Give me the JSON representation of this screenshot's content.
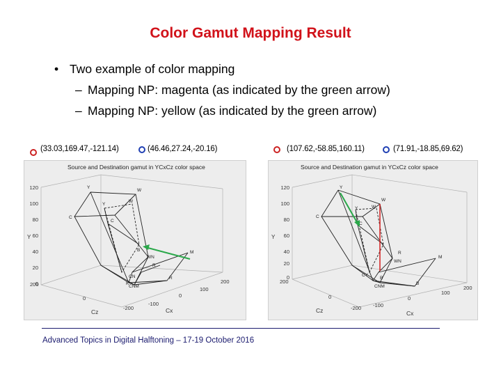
{
  "slide": {
    "title": "Color Gamut Mapping Result",
    "bullet": "Two example of color mapping",
    "sub1": "Mapping NP: magenta (as indicated by the green arrow)",
    "sub2": "Mapping NP: yellow (as indicated by the green arrow)",
    "footer": "Advanced Topics in Digital Halftoning – 17-19 October 2016"
  },
  "colors": {
    "title": "#d1121a",
    "source_marker": "#cc2222",
    "dest_marker": "#1f3fb3",
    "arrow": "#2aa84a",
    "mapping_line": "#d41d1d"
  },
  "plots": [
    {
      "source_coord": "(33.03,169.47,-121.14)",
      "dest_coord": "(46.46,27.24,-20.16)",
      "title": "Source and Destination gamut in YCxCz color space",
      "y_ticks": [
        "120",
        "100",
        "80",
        "60",
        "40",
        "20",
        "0"
      ],
      "y_label": "Y",
      "cz_ticks": [
        "200",
        "0",
        "-200"
      ],
      "cz_label": "Cz",
      "cx_ticks": [
        "-100",
        "0",
        "100",
        "200"
      ],
      "cx_label": "Cx",
      "vertices": [
        "Y",
        "W",
        "Y",
        "W",
        "C",
        "C",
        "B",
        "M",
        "WN",
        "R",
        "CN",
        "K",
        "CNM",
        "R"
      ]
    },
    {
      "source_coord": "(107.62,-58.85,160.11)",
      "dest_coord": "(71.91,-18.85,69.62)",
      "title": "Source and Destination gamut in YCxCz color space",
      "y_ticks": [
        "120",
        "100",
        "80",
        "60",
        "40",
        "20",
        "0"
      ],
      "y_label": "Y",
      "cz_ticks": [
        "200",
        "0",
        "-200"
      ],
      "cz_label": "Cz",
      "cx_ticks": [
        "-100",
        "0",
        "100",
        "200"
      ],
      "cx_label": "Cx",
      "vertices": [
        "Y",
        "Y",
        "W",
        "W",
        "C",
        "C",
        "R",
        "M",
        "WN",
        "CY",
        "B",
        "CNM",
        "B"
      ]
    }
  ]
}
